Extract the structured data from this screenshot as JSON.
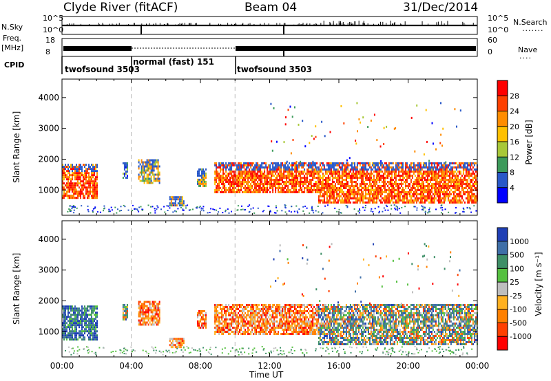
{
  "header": {
    "station": "Clyde River (fitACF)",
    "beam": "Beam 04",
    "date": "31/Dec/2014"
  },
  "strip": {
    "nsky_label": "N.Sky",
    "nsearch_label": "N.Search",
    "freq_label_1": "Freq.",
    "freq_label_2": "[MHz]",
    "nave_label": "Nave",
    "cpid_label": "CPID",
    "count_ticks": [
      "10^5",
      "10^0"
    ],
    "freq_ticks": [
      "18",
      "8"
    ],
    "nave_ticks": [
      "60",
      "0"
    ]
  },
  "cpid_segments": [
    {
      "label": "twofsound 3503",
      "start_hour": 0
    },
    {
      "label": "normal (fast) 151",
      "start_hour": 4.2
    },
    {
      "label": "twofsound 3503",
      "start_hour": 10
    }
  ],
  "chart_data": [
    {
      "type": "heatmap",
      "title": "",
      "xlabel": "",
      "ylabel": "Slant Range [km]",
      "xlim": [
        0,
        24
      ],
      "ylim": [
        180,
        4600
      ],
      "yticks": [
        "1000",
        "2000",
        "3000",
        "4000"
      ],
      "colorbar": {
        "label": "Power [dB]",
        "ticks": [
          "28",
          "24",
          "20",
          "16",
          "12",
          "8",
          "4"
        ],
        "colors": [
          "#ff0000",
          "#ff4000",
          "#ff8c00",
          "#ffc000",
          "#a8c838",
          "#3c9a5a",
          "#2858c8",
          "#0000ff"
        ]
      },
      "regions": [
        {
          "t_start": 0.0,
          "t_end": 2.0,
          "r_min": 750,
          "r_max": 1850,
          "level": "high"
        },
        {
          "t_start": 3.5,
          "t_end": 3.8,
          "r_min": 1400,
          "r_max": 1900,
          "level": "low"
        },
        {
          "t_start": 4.4,
          "t_end": 5.6,
          "r_min": 1200,
          "r_max": 2000,
          "level": "medium"
        },
        {
          "t_start": 6.2,
          "t_end": 7.0,
          "r_min": 500,
          "r_max": 800,
          "level": "medium"
        },
        {
          "t_start": 7.8,
          "t_end": 8.3,
          "r_min": 1100,
          "r_max": 1700,
          "level": "medium"
        },
        {
          "t_start": 8.8,
          "t_end": 14.8,
          "r_min": 900,
          "r_max": 1900,
          "level": "high"
        },
        {
          "t_start": 14.8,
          "t_end": 24.0,
          "r_min": 600,
          "r_max": 1900,
          "level": "high"
        }
      ]
    },
    {
      "type": "heatmap",
      "title": "",
      "xlabel": "Time UT",
      "ylabel": "Slant Range [km]",
      "xlim": [
        0,
        24
      ],
      "ylim": [
        180,
        4600
      ],
      "xticks": [
        "00:00",
        "04:00",
        "08:00",
        "12:00",
        "16:00",
        "20:00",
        "00:00"
      ],
      "yticks": [
        "1000",
        "2000",
        "3000",
        "4000"
      ],
      "colorbar": {
        "label": "Velocity [m s⁻¹]",
        "ticks": [
          "1000",
          "500",
          "100",
          "25",
          "-25",
          "-100",
          "-500",
          "-1000"
        ],
        "colors": [
          "#1f3fb5",
          "#3f6fa8",
          "#3e8f67",
          "#55c040",
          "#bebebe",
          "#ffb020",
          "#ff8000",
          "#ff4000",
          "#ff0000"
        ]
      },
      "regions": [
        {
          "t_start": 0.0,
          "t_end": 2.0,
          "r_min": 750,
          "r_max": 1850,
          "sign": "toward"
        },
        {
          "t_start": 3.5,
          "t_end": 3.8,
          "r_min": 1400,
          "r_max": 1900,
          "sign": "mixed"
        },
        {
          "t_start": 4.4,
          "t_end": 5.6,
          "r_min": 1200,
          "r_max": 2000,
          "sign": "away"
        },
        {
          "t_start": 6.2,
          "t_end": 7.0,
          "r_min": 500,
          "r_max": 800,
          "sign": "away"
        },
        {
          "t_start": 7.8,
          "t_end": 8.3,
          "r_min": 1100,
          "r_max": 1700,
          "sign": "away"
        },
        {
          "t_start": 8.8,
          "t_end": 14.8,
          "r_min": 900,
          "r_max": 1900,
          "sign": "away"
        },
        {
          "t_start": 14.8,
          "t_end": 24.0,
          "r_min": 600,
          "r_max": 1900,
          "sign": "mixed"
        }
      ]
    }
  ]
}
